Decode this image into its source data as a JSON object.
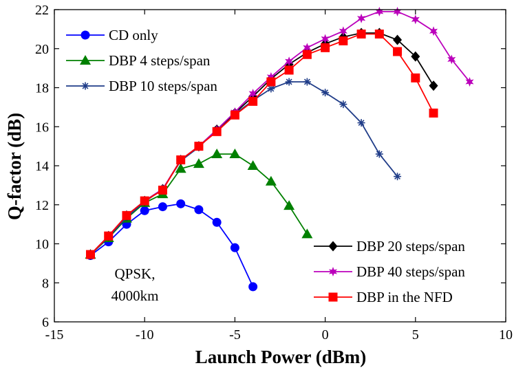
{
  "chart_data": {
    "type": "line",
    "title": "",
    "xlabel": "Launch Power (dBm)",
    "ylabel": "Q-factor (dB)",
    "xlim": [
      -15,
      10
    ],
    "ylim": [
      6,
      22
    ],
    "xticks": [
      -15,
      -10,
      -5,
      0,
      5,
      10
    ],
    "yticks": [
      6,
      8,
      10,
      12,
      14,
      16,
      18,
      20,
      22
    ],
    "grid": false,
    "annotation": [
      "QPSK,",
      "4000km"
    ],
    "series": [
      {
        "name": "CD only",
        "color": "#0000ff",
        "marker": "circle",
        "x": [
          -13,
          -12,
          -11,
          -10,
          -9,
          -8,
          -7,
          -6,
          -5,
          -4
        ],
        "y": [
          9.4,
          10.1,
          11.0,
          11.7,
          11.9,
          12.05,
          11.75,
          11.1,
          9.8,
          7.8
        ]
      },
      {
        "name": "DBP 4 steps/span",
        "color": "#008000",
        "marker": "triangle",
        "x": [
          -13,
          -12,
          -11,
          -10,
          -9,
          -8,
          -7,
          -6,
          -5,
          -4,
          -3,
          -2,
          -1
        ],
        "y": [
          9.45,
          10.3,
          11.3,
          12.1,
          12.55,
          13.85,
          14.1,
          14.6,
          14.6,
          14.0,
          13.2,
          11.95,
          10.5
        ]
      },
      {
        "name": "DBP 10 steps/span",
        "color": "#1f3c88",
        "marker": "asterisk",
        "x": [
          -13,
          -12,
          -11,
          -10,
          -9,
          -8,
          -7,
          -6,
          -5,
          -4,
          -3,
          -2,
          -1,
          0,
          1,
          2,
          3,
          4
        ],
        "y": [
          9.45,
          10.35,
          11.35,
          12.15,
          12.8,
          14.25,
          14.95,
          15.85,
          16.65,
          17.35,
          17.95,
          18.3,
          18.3,
          17.75,
          17.15,
          16.2,
          14.6,
          13.45
        ]
      },
      {
        "name": "DBP 20 steps/span",
        "color": "#000000",
        "marker": "diamond",
        "x": [
          -13,
          -12,
          -11,
          -10,
          -9,
          -8,
          -7,
          -6,
          -5,
          -4,
          -3,
          -2,
          -1,
          0,
          1,
          2,
          3,
          4,
          5,
          6
        ],
        "y": [
          9.45,
          10.4,
          11.45,
          12.2,
          12.8,
          14.3,
          15.0,
          15.85,
          16.7,
          17.55,
          18.45,
          19.2,
          19.8,
          20.25,
          20.6,
          20.8,
          20.8,
          20.45,
          19.6,
          18.1
        ]
      },
      {
        "name": "DBP 40 steps/span",
        "color": "#bb00bb",
        "marker": "star",
        "x": [
          -13,
          -12,
          -11,
          -10,
          -9,
          -8,
          -7,
          -6,
          -5,
          -4,
          -3,
          -2,
          -1,
          0,
          1,
          2,
          3,
          4,
          5,
          6,
          7,
          8
        ],
        "y": [
          9.45,
          10.4,
          11.45,
          12.2,
          12.8,
          14.3,
          15.0,
          15.85,
          16.75,
          17.7,
          18.55,
          19.35,
          20.05,
          20.5,
          20.9,
          21.55,
          21.9,
          21.9,
          21.5,
          20.9,
          19.45,
          18.3
        ]
      },
      {
        "name": "DBP in the NFD",
        "color": "#ff0000",
        "marker": "square",
        "x": [
          -13,
          -12,
          -11,
          -10,
          -9,
          -8,
          -7,
          -6,
          -5,
          -4,
          -3,
          -2,
          -1,
          0,
          1,
          2,
          3,
          4,
          5,
          6
        ],
        "y": [
          9.45,
          10.4,
          11.45,
          12.2,
          12.75,
          14.3,
          15.0,
          15.75,
          16.6,
          17.3,
          18.3,
          18.9,
          19.7,
          20.05,
          20.4,
          20.75,
          20.75,
          19.85,
          18.5,
          16.7
        ]
      }
    ],
    "legend_groups": [
      {
        "placement": "top-left",
        "series": [
          0,
          1,
          2
        ]
      },
      {
        "placement": "bottom-right",
        "series": [
          3,
          4,
          5
        ]
      }
    ]
  }
}
